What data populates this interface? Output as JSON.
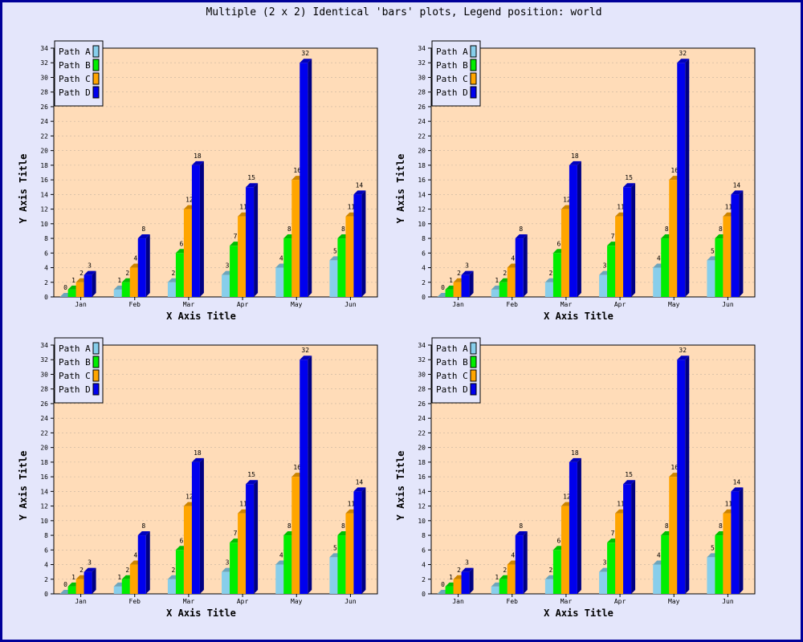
{
  "title": "Multiple (2 x 2) Identical 'bars' plots, Legend position: world",
  "colors": {
    "background": "#e4e6fb",
    "border": "#000099",
    "plot_area": "#ffdcb8",
    "grid": "#c8b4a0"
  },
  "chart_data": [
    {
      "type": "bar",
      "categories": [
        "Jan",
        "Feb",
        "Mar",
        "Apr",
        "May",
        "Jun"
      ],
      "series": [
        {
          "name": "Path A",
          "color": "#87ceeb",
          "values": [
            0,
            1,
            2,
            3,
            4,
            5
          ]
        },
        {
          "name": "Path B",
          "color": "#00ee00",
          "values": [
            1,
            2,
            6,
            7,
            8,
            8
          ]
        },
        {
          "name": "Path C",
          "color": "#ffa500",
          "values": [
            2,
            4,
            12,
            11,
            16,
            11
          ]
        },
        {
          "name": "Path D",
          "color": "#0000ee",
          "values": [
            3,
            8,
            18,
            15,
            32,
            14
          ]
        }
      ],
      "xlabel": "X Axis Title",
      "ylabel": "Y Axis Title",
      "ylim": [
        0,
        34
      ],
      "y_ticks": [
        0,
        2,
        4,
        6,
        8,
        10,
        12,
        14,
        16,
        18,
        20,
        22,
        24,
        26,
        28,
        30,
        32,
        34
      ],
      "grid": true,
      "legend_position": "top-left"
    },
    {
      "type": "bar",
      "categories": [
        "Jan",
        "Feb",
        "Mar",
        "Apr",
        "May",
        "Jun"
      ],
      "series": [
        {
          "name": "Path A",
          "color": "#87ceeb",
          "values": [
            0,
            1,
            2,
            3,
            4,
            5
          ]
        },
        {
          "name": "Path B",
          "color": "#00ee00",
          "values": [
            1,
            2,
            6,
            7,
            8,
            8
          ]
        },
        {
          "name": "Path C",
          "color": "#ffa500",
          "values": [
            2,
            4,
            12,
            11,
            16,
            11
          ]
        },
        {
          "name": "Path D",
          "color": "#0000ee",
          "values": [
            3,
            8,
            18,
            15,
            32,
            14
          ]
        }
      ],
      "xlabel": "X Axis Title",
      "ylabel": "Y Axis Title",
      "ylim": [
        0,
        34
      ],
      "y_ticks": [
        0,
        2,
        4,
        6,
        8,
        10,
        12,
        14,
        16,
        18,
        20,
        22,
        24,
        26,
        28,
        30,
        32,
        34
      ],
      "grid": true,
      "legend_position": "top-left"
    },
    {
      "type": "bar",
      "categories": [
        "Jan",
        "Feb",
        "Mar",
        "Apr",
        "May",
        "Jun"
      ],
      "series": [
        {
          "name": "Path A",
          "color": "#87ceeb",
          "values": [
            0,
            1,
            2,
            3,
            4,
            5
          ]
        },
        {
          "name": "Path B",
          "color": "#00ee00",
          "values": [
            1,
            2,
            6,
            7,
            8,
            8
          ]
        },
        {
          "name": "Path C",
          "color": "#ffa500",
          "values": [
            2,
            4,
            12,
            11,
            16,
            11
          ]
        },
        {
          "name": "Path D",
          "color": "#0000ee",
          "values": [
            3,
            8,
            18,
            15,
            32,
            14
          ]
        }
      ],
      "xlabel": "X Axis Title",
      "ylabel": "Y Axis Title",
      "ylim": [
        0,
        34
      ],
      "y_ticks": [
        0,
        2,
        4,
        6,
        8,
        10,
        12,
        14,
        16,
        18,
        20,
        22,
        24,
        26,
        28,
        30,
        32,
        34
      ],
      "grid": true,
      "legend_position": "top-left"
    },
    {
      "type": "bar",
      "categories": [
        "Jan",
        "Feb",
        "Mar",
        "Apr",
        "May",
        "Jun"
      ],
      "series": [
        {
          "name": "Path A",
          "color": "#87ceeb",
          "values": [
            0,
            1,
            2,
            3,
            4,
            5
          ]
        },
        {
          "name": "Path B",
          "color": "#00ee00",
          "values": [
            1,
            2,
            6,
            7,
            8,
            8
          ]
        },
        {
          "name": "Path C",
          "color": "#ffa500",
          "values": [
            2,
            4,
            12,
            11,
            16,
            11
          ]
        },
        {
          "name": "Path D",
          "color": "#0000ee",
          "values": [
            3,
            8,
            18,
            15,
            32,
            14
          ]
        }
      ],
      "xlabel": "X Axis Title",
      "ylabel": "Y Axis Title",
      "ylim": [
        0,
        34
      ],
      "y_ticks": [
        0,
        2,
        4,
        6,
        8,
        10,
        12,
        14,
        16,
        18,
        20,
        22,
        24,
        26,
        28,
        30,
        32,
        34
      ],
      "grid": true,
      "legend_position": "top-left"
    }
  ]
}
